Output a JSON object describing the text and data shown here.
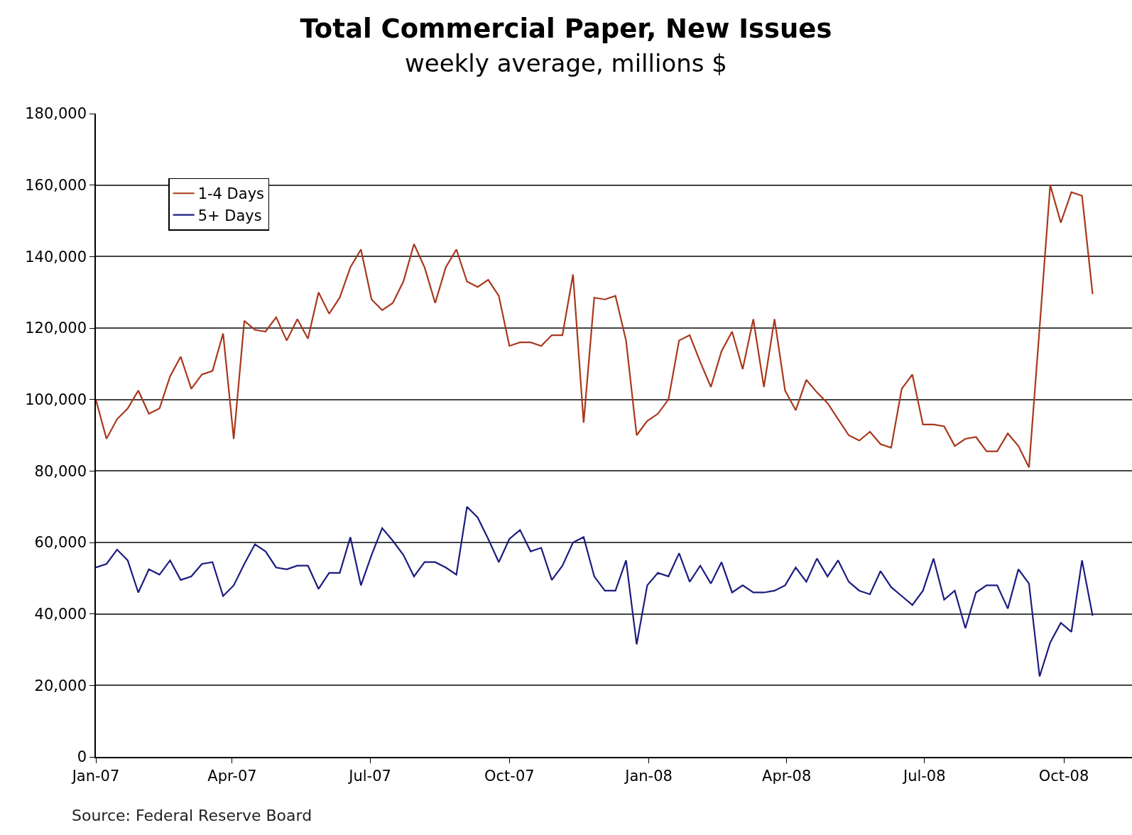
{
  "chart_data": {
    "type": "line",
    "title": "Total Commercial Paper, New Issues",
    "subtitle": "weekly average, millions $",
    "x": [
      "2007-01-01",
      "2007-01-08",
      "2007-01-15",
      "2007-01-22",
      "2007-01-29",
      "2007-02-05",
      "2007-02-12",
      "2007-02-19",
      "2007-02-26",
      "2007-03-05",
      "2007-03-12",
      "2007-03-19",
      "2007-03-26",
      "2007-04-02",
      "2007-04-09",
      "2007-04-16",
      "2007-04-23",
      "2007-04-30",
      "2007-05-07",
      "2007-05-14",
      "2007-05-21",
      "2007-05-28",
      "2007-06-04",
      "2007-06-11",
      "2007-06-18",
      "2007-06-25",
      "2007-07-02",
      "2007-07-09",
      "2007-07-16",
      "2007-07-23",
      "2007-07-30",
      "2007-08-06",
      "2007-08-13",
      "2007-08-20",
      "2007-08-27",
      "2007-09-03",
      "2007-09-10",
      "2007-09-17",
      "2007-09-24",
      "2007-10-01",
      "2007-10-08",
      "2007-10-15",
      "2007-10-22",
      "2007-10-29",
      "2007-11-05",
      "2007-11-12",
      "2007-11-19",
      "2007-11-26",
      "2007-12-03",
      "2007-12-10",
      "2007-12-17",
      "2007-12-24",
      "2007-12-31",
      "2008-01-07",
      "2008-01-14",
      "2008-01-21",
      "2008-01-28",
      "2008-02-04",
      "2008-02-11",
      "2008-02-18",
      "2008-02-25",
      "2008-03-03",
      "2008-03-10",
      "2008-03-17",
      "2008-03-24",
      "2008-03-31",
      "2008-04-07",
      "2008-04-14",
      "2008-04-21",
      "2008-04-28",
      "2008-05-05",
      "2008-05-12",
      "2008-05-19",
      "2008-05-26",
      "2008-06-02",
      "2008-06-09",
      "2008-06-16",
      "2008-06-23",
      "2008-06-30",
      "2008-07-07",
      "2008-07-14",
      "2008-07-21",
      "2008-07-28",
      "2008-08-04",
      "2008-08-11",
      "2008-08-18",
      "2008-08-25",
      "2008-09-01",
      "2008-09-08",
      "2008-09-15",
      "2008-09-22",
      "2008-09-29",
      "2008-10-06",
      "2008-10-13",
      "2008-10-20"
    ],
    "series": [
      {
        "name": "1-4 Days",
        "color": "#a8381c",
        "values": [
          100000,
          89000,
          94500,
          97500,
          102500,
          96000,
          97500,
          106500,
          112000,
          103000,
          107000,
          108000,
          118500,
          89000,
          122000,
          119500,
          119000,
          123000,
          116500,
          122500,
          117000,
          130000,
          124000,
          128500,
          137000,
          142000,
          128000,
          125000,
          127000,
          133000,
          143500,
          137000,
          127000,
          137000,
          142000,
          133000,
          131500,
          133500,
          129000,
          115000,
          116000,
          116000,
          115000,
          118000,
          118000,
          135000,
          93500,
          128500,
          128000,
          129000,
          116500,
          90000,
          94000,
          96000,
          100000,
          116500,
          118000,
          110500,
          103500,
          113500,
          119000,
          108500,
          122500,
          103500,
          122500,
          102500,
          97000,
          105500,
          102000,
          99000,
          94500,
          90000,
          88500,
          91000,
          87500,
          86500,
          103000,
          107000,
          93000,
          93000,
          92500,
          87000,
          89000,
          89500,
          85500,
          85500,
          90500,
          87000,
          81000,
          120000,
          160000,
          149500,
          158000,
          157000,
          129500
        ]
      },
      {
        "name": "5+ Days",
        "color": "#1c1c80",
        "values": [
          53000,
          54000,
          58000,
          55000,
          46000,
          52500,
          51000,
          55000,
          49500,
          50500,
          54000,
          54500,
          45000,
          48000,
          54000,
          59500,
          57500,
          53000,
          52500,
          53500,
          53500,
          47000,
          51500,
          51500,
          61500,
          48000,
          56500,
          64000,
          60500,
          56500,
          50500,
          54500,
          54500,
          53000,
          51000,
          70000,
          67000,
          61000,
          54500,
          61000,
          63500,
          57500,
          58500,
          49500,
          53500,
          60000,
          61500,
          50500,
          46500,
          46500,
          55000,
          31500,
          48000,
          51500,
          50500,
          57000,
          49000,
          53500,
          48500,
          54500,
          46000,
          48000,
          46000,
          46000,
          46500,
          48000,
          53000,
          49000,
          55500,
          50500,
          55000,
          49000,
          46500,
          45500,
          52000,
          47500,
          45000,
          42500,
          46500,
          55500,
          44000,
          46500,
          36000,
          46000,
          48000,
          48000,
          41500,
          52500,
          48500,
          22500,
          32000,
          37500,
          35000,
          55000,
          39500
        ]
      }
    ],
    "xlim": [
      "2007-01-01",
      "2008-11-15"
    ],
    "xticks": [
      {
        "value": "2007-01-01",
        "label": "Jan-07"
      },
      {
        "value": "2007-04-01",
        "label": "Apr-07"
      },
      {
        "value": "2007-07-01",
        "label": "Jul-07"
      },
      {
        "value": "2007-10-01",
        "label": "Oct-07"
      },
      {
        "value": "2008-01-01",
        "label": "Jan-08"
      },
      {
        "value": "2008-04-01",
        "label": "Apr-08"
      },
      {
        "value": "2008-07-01",
        "label": "Jul-08"
      },
      {
        "value": "2008-10-01",
        "label": "Oct-08"
      }
    ],
    "ylim": [
      0,
      180000
    ],
    "yticks": [
      0,
      {
        "value": 20000,
        "label": "20,000"
      },
      {
        "value": 40000,
        "label": "40,000"
      },
      {
        "value": 60000,
        "label": "60,000"
      },
      {
        "value": 80000,
        "label": "80,000"
      },
      {
        "value": 100000,
        "label": "100,000"
      },
      {
        "value": 120000,
        "label": "120,000"
      },
      {
        "value": 140000,
        "label": "140,000"
      },
      {
        "value": 160000,
        "label": "160,000"
      },
      {
        "value": 180000,
        "label": "180,000"
      }
    ],
    "grid": "y",
    "legend": "top left",
    "marker": "none",
    "line_style": "solid",
    "annotations": [
      "Source: Federal Reserve Board"
    ]
  }
}
